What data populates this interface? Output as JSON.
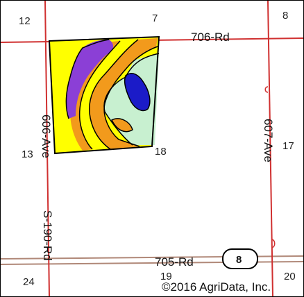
{
  "map": {
    "colors": {
      "section_line": "#d03030",
      "highway": "#b08878",
      "field_outline": "#000000",
      "soil_yellow": "#ffff00",
      "soil_orange": "#f29a1c",
      "soil_purple": "#8b3fd6",
      "soil_blue": "#1b1bc8",
      "soil_mint": "#c8f0d0",
      "background": "#ffffff"
    },
    "section_numbers": {
      "nw": "12",
      "n_center": "7",
      "ne": "8",
      "w_mid": "13",
      "center": "18",
      "e_mid": "17",
      "sw": "24",
      "s_center": "19",
      "se": "20"
    },
    "roads": {
      "north_road": "706-Rd",
      "south_road": "705-Rd",
      "west_ave": "606-Ave",
      "east_ave": "607-Ave",
      "state_route": "S-190-Rd",
      "shield_number": "8"
    },
    "copyright": "©2016 AgriData, Inc."
  }
}
